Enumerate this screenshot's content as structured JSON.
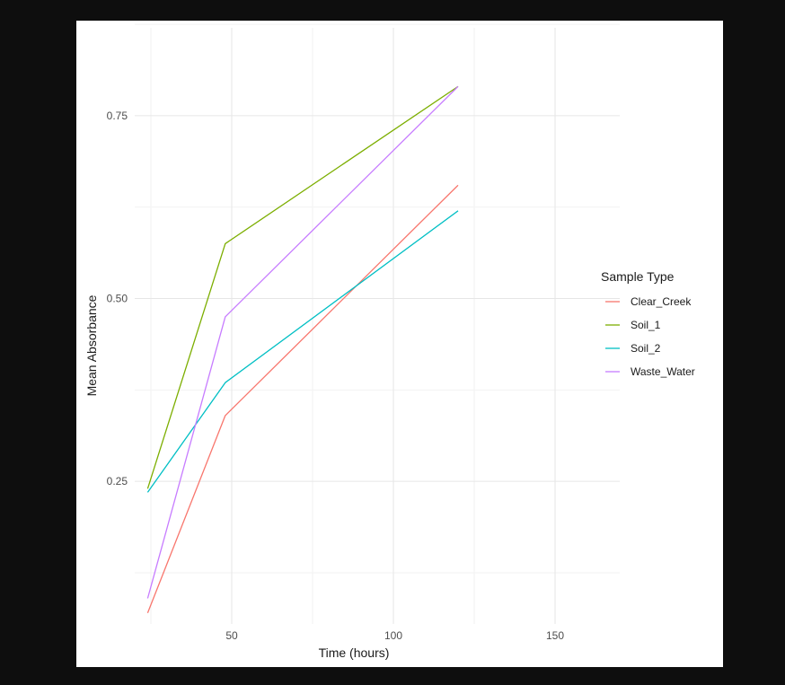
{
  "chart_data": {
    "type": "line",
    "title": "",
    "xlabel": "Time (hours)",
    "ylabel": "Mean Absorbance",
    "xlim": [
      20,
      170
    ],
    "ylim": [
      0.055,
      0.88
    ],
    "x_ticks": [
      50,
      100,
      150
    ],
    "x_tick_labels": [
      "50",
      "100",
      "150"
    ],
    "x_minor_ticks": [
      25,
      75,
      125
    ],
    "y_ticks": [
      0.25,
      0.5,
      0.75
    ],
    "y_tick_labels": [
      "0.25",
      "0.50",
      "0.75"
    ],
    "y_minor_ticks": [
      0.125,
      0.375,
      0.625,
      0.875
    ],
    "grid": true,
    "legend": {
      "title": "Sample Type",
      "position": "right"
    },
    "series": [
      {
        "name": "Clear_Creek",
        "color": "#f8766d",
        "x": [
          24,
          48,
          120
        ],
        "y": [
          0.07,
          0.34,
          0.655
        ]
      },
      {
        "name": "Soil_1",
        "color": "#7cae00",
        "x": [
          24,
          48,
          120
        ],
        "y": [
          0.24,
          0.575,
          0.79
        ]
      },
      {
        "name": "Soil_2",
        "color": "#00bfc4",
        "x": [
          24,
          48,
          120
        ],
        "y": [
          0.235,
          0.385,
          0.62
        ]
      },
      {
        "name": "Waste_Water",
        "color": "#c77cff",
        "x": [
          24,
          48,
          120
        ],
        "y": [
          0.09,
          0.475,
          0.79
        ]
      }
    ]
  }
}
